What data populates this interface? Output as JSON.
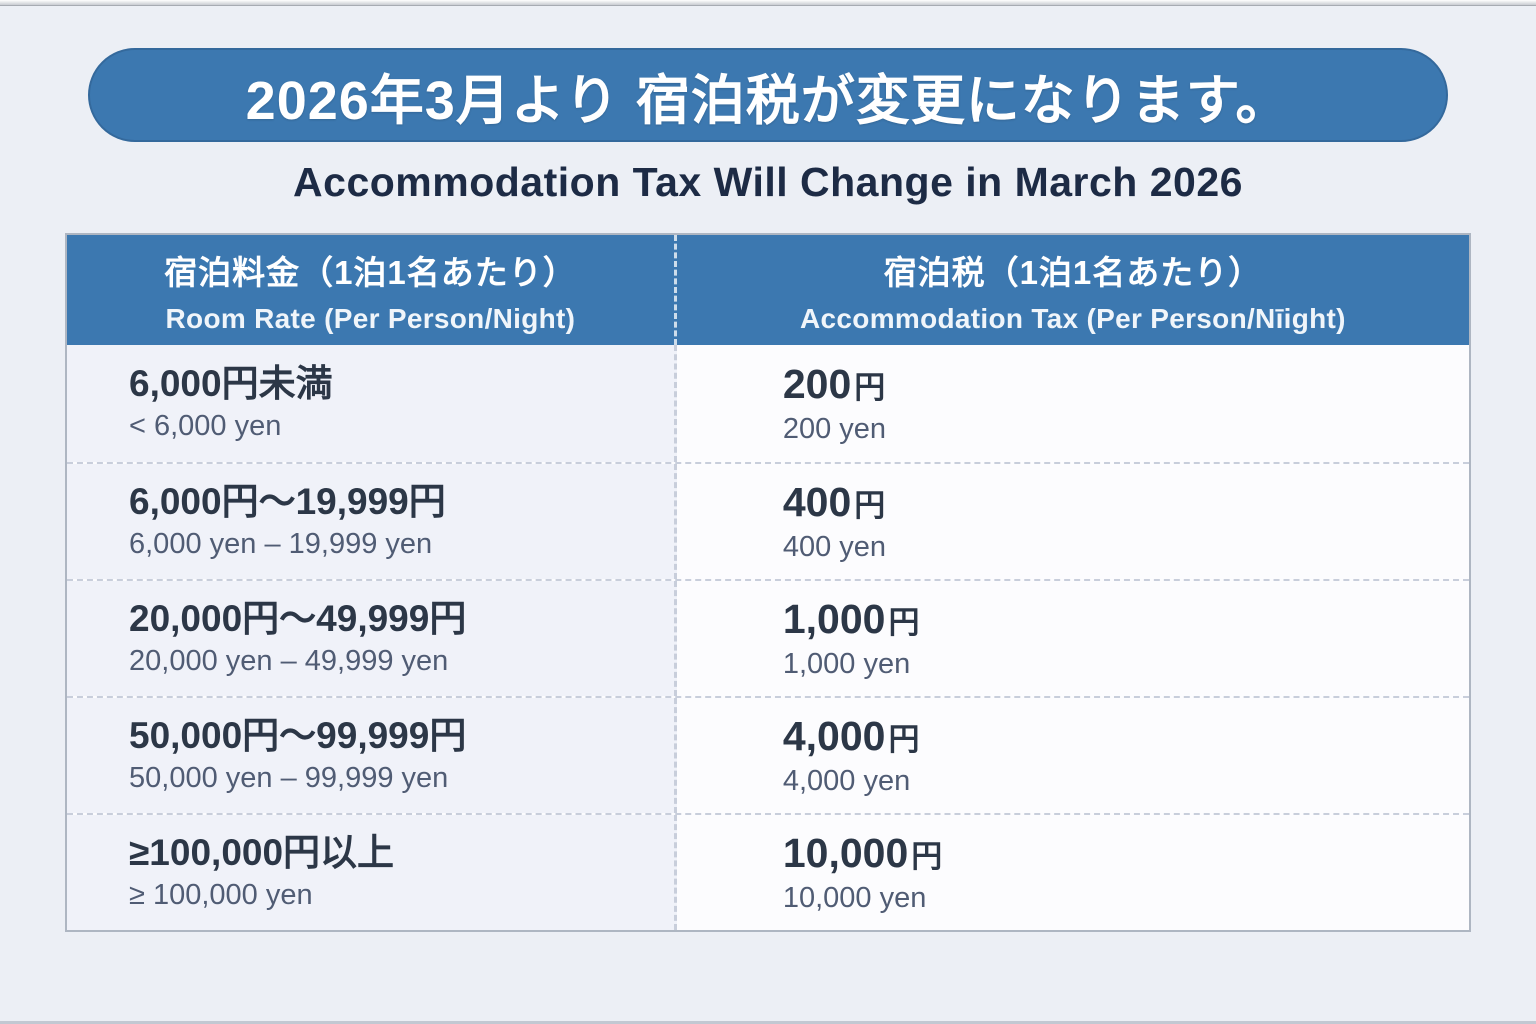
{
  "page": {
    "title_jp": "2026年3月より 宿泊税が変更になります。",
    "subtitle_en": "Accommodation Tax Will Change in March 2026"
  },
  "table": {
    "header": {
      "room_rate_jp": "宿泊料金（1泊1名あたり）",
      "room_rate_en": "Room Rate (Per Person/Night)",
      "tax_jp": "宿泊税（1泊1名あたり）",
      "tax_en": "Accommodation Tax (Per Person/Nīight)"
    },
    "rows": [
      {
        "rate_jp": "6,000円未満",
        "rate_en": "< 6,000 yen",
        "tax_amount": "200",
        "tax_unit": "円",
        "tax_en": "200 yen"
      },
      {
        "rate_jp": "6,000円～19,999円",
        "rate_en": "6,000 yen – 19,999 yen",
        "tax_amount": "400",
        "tax_unit": "円",
        "tax_en": "400 yen"
      },
      {
        "rate_jp": "20,000円～49,999円",
        "rate_en": "20,000 yen – 49,999 yen",
        "tax_amount": "1,000",
        "tax_unit": "円",
        "tax_en": "1,000 yen"
      },
      {
        "rate_jp": "50,000円～99,999円",
        "rate_en": "50,000 yen – 99,999 yen",
        "tax_amount": "4,000",
        "tax_unit": "円",
        "tax_en": "4,000 yen"
      },
      {
        "rate_jp": "≥100,000円以上",
        "rate_en": "≥ 100,000 yen",
        "tax_amount": "10,000",
        "tax_unit": "円",
        "tax_en": "10,000 yen"
      }
    ]
  },
  "colors": {
    "primary_blue": "#3c78b0",
    "subtitle_navy": "#1d2b45",
    "cell_text_dark": "#2c3747",
    "cell_text_gray": "#505c74",
    "left_cell_bg": "#f0f2f9",
    "right_cell_bg": "#fcfcfe",
    "page_bg": "#eceff5"
  }
}
